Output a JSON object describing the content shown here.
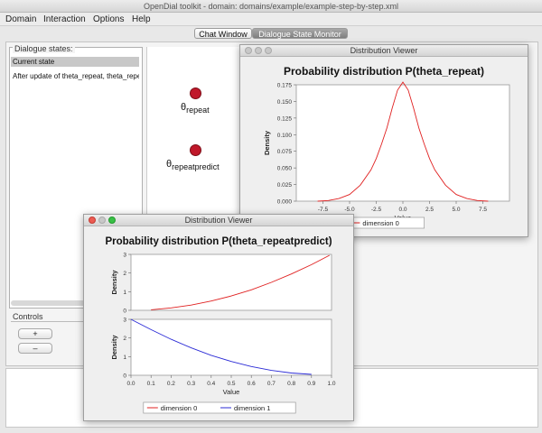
{
  "window": {
    "title": "OpenDial toolkit - domain: domains/example/example-step-by-step.xml"
  },
  "menu": [
    {
      "label": "Domain"
    },
    {
      "label": "Interaction"
    },
    {
      "label": "Options"
    },
    {
      "label": "Help"
    }
  ],
  "tabs": {
    "chat": "Chat Window",
    "state_monitor": "Dialogue State Monitor"
  },
  "dialogue_states": {
    "legend": "Dialogue states:",
    "items": [
      "Current state",
      "After update of theta_repeat, theta_repeatpredict"
    ]
  },
  "controls": {
    "legend": "Controls",
    "plus_label": "+",
    "minus_label": "–"
  },
  "graph": {
    "nodes": [
      {
        "symbol": "θ",
        "sub": "repeat"
      },
      {
        "symbol": "θ",
        "sub": "repeatpredict"
      }
    ],
    "node_color": "#c0182a"
  },
  "viewer1": {
    "window_title": "Distribution Viewer",
    "title": "Probability distribution P(theta_repeat)",
    "chart_data": {
      "type": "line",
      "title": "Probability distribution P(theta_repeat)",
      "xlabel": "Value",
      "ylabel": "Density",
      "xlim": [
        -10,
        10
      ],
      "ylim": [
        0,
        0.175
      ],
      "x_ticks": [
        "-7.5",
        "-5.0",
        "-2.5",
        "0.0",
        "2.5",
        "5.0",
        "7.5"
      ],
      "y_ticks": [
        "0.000",
        "0.025",
        "0.050",
        "0.075",
        "0.100",
        "0.125",
        "0.150",
        "0.175"
      ],
      "series": [
        {
          "name": "dimension 0",
          "color": "#e02020",
          "x": [
            -8,
            -7,
            -6,
            -5,
            -4,
            -3,
            -2.5,
            -2,
            -1.5,
            -1,
            -0.5,
            0,
            0.5,
            1,
            1.5,
            2,
            2.5,
            3,
            4,
            5,
            6,
            7,
            8
          ],
          "y": [
            0.0,
            0.001,
            0.004,
            0.01,
            0.024,
            0.047,
            0.064,
            0.086,
            0.11,
            0.14,
            0.167,
            0.179,
            0.167,
            0.14,
            0.11,
            0.086,
            0.064,
            0.047,
            0.024,
            0.01,
            0.004,
            0.001,
            0.0
          ]
        }
      ]
    }
  },
  "viewer2": {
    "window_title": "Distribution Viewer",
    "title": "Probability distribution P(theta_repeatpredict)",
    "chart_data": [
      {
        "type": "line",
        "ylabel": "Density",
        "xlim": [
          0,
          1.0
        ],
        "ylim": [
          0,
          3
        ],
        "y_ticks": [
          "0",
          "1",
          "2",
          "3"
        ],
        "series": [
          {
            "name": "dimension 0",
            "color": "#e02020",
            "x": [
              0.1,
              0.2,
              0.3,
              0.4,
              0.5,
              0.6,
              0.7,
              0.8,
              0.9,
              0.99
            ],
            "y": [
              0.03,
              0.13,
              0.28,
              0.5,
              0.77,
              1.1,
              1.5,
              1.95,
              2.45,
              2.95
            ]
          }
        ]
      },
      {
        "type": "line",
        "xlabel": "Value",
        "ylabel": "Density",
        "xlim": [
          0,
          1.0
        ],
        "ylim": [
          0,
          3
        ],
        "x_ticks": [
          "0.0",
          "0.1",
          "0.2",
          "0.3",
          "0.4",
          "0.5",
          "0.6",
          "0.7",
          "0.8",
          "0.9",
          "1.0"
        ],
        "y_ticks": [
          "0",
          "1",
          "2",
          "3"
        ],
        "series": [
          {
            "name": "dimension 1",
            "color": "#2b2bd6",
            "x": [
              0.0,
              0.1,
              0.2,
              0.3,
              0.4,
              0.5,
              0.6,
              0.7,
              0.8,
              0.9
            ],
            "y": [
              3.0,
              2.45,
              1.93,
              1.47,
              1.07,
              0.74,
              0.47,
              0.26,
              0.12,
              0.05
            ]
          }
        ]
      }
    ],
    "legend": [
      "dimension 0",
      "dimension 1"
    ]
  }
}
